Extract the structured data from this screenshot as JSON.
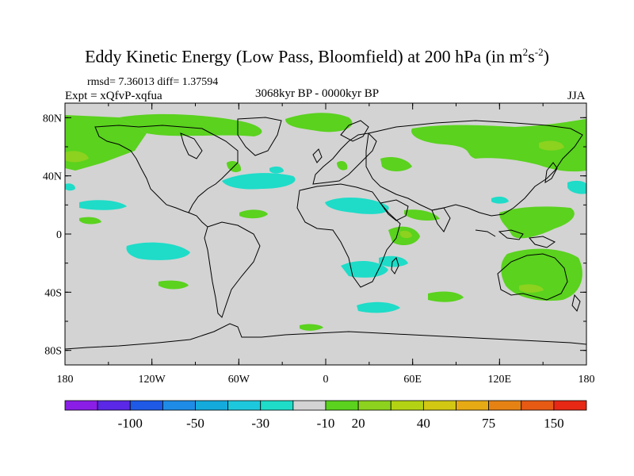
{
  "title": {
    "main": "Eddy Kinetic Energy (Low Pass, Bloomfield) at 200 hPa (in m",
    "sup1": "2",
    "mid": "s",
    "sup2": "-2",
    "end": ")"
  },
  "stats": "rmsd= 7.36013 diff= 1.37594",
  "experiment": "Expt = xQfvP-xqfua",
  "period": "3068kyr BP - 0000kyr BP",
  "season": "JJA",
  "map": {
    "background_color": "#d3d3d3",
    "lat_ticks": [
      "80N",
      "40N",
      "0",
      "40S",
      "80S"
    ],
    "lon_ticks": [
      "180",
      "120W",
      "60W",
      "0",
      "60E",
      "120E",
      "180"
    ]
  },
  "colorbar": {
    "colors": [
      "#8a1ee6",
      "#5a28e6",
      "#1e5ae6",
      "#1e8ce6",
      "#14aadc",
      "#1ec8dc",
      "#1edcc8",
      "#d3d3d3",
      "#5ad21e",
      "#8cd21e",
      "#b4d214",
      "#d2c814",
      "#e6aa14",
      "#e68214",
      "#e65a14",
      "#e62814"
    ],
    "labels": [
      "-100",
      "-50",
      "-30",
      "-10",
      "20",
      "40",
      "75",
      "150"
    ]
  },
  "anomaly_colors": {
    "positive_small": "#5ad21e",
    "positive_medium": "#8cd21e",
    "negative_small": "#1edcc8"
  }
}
